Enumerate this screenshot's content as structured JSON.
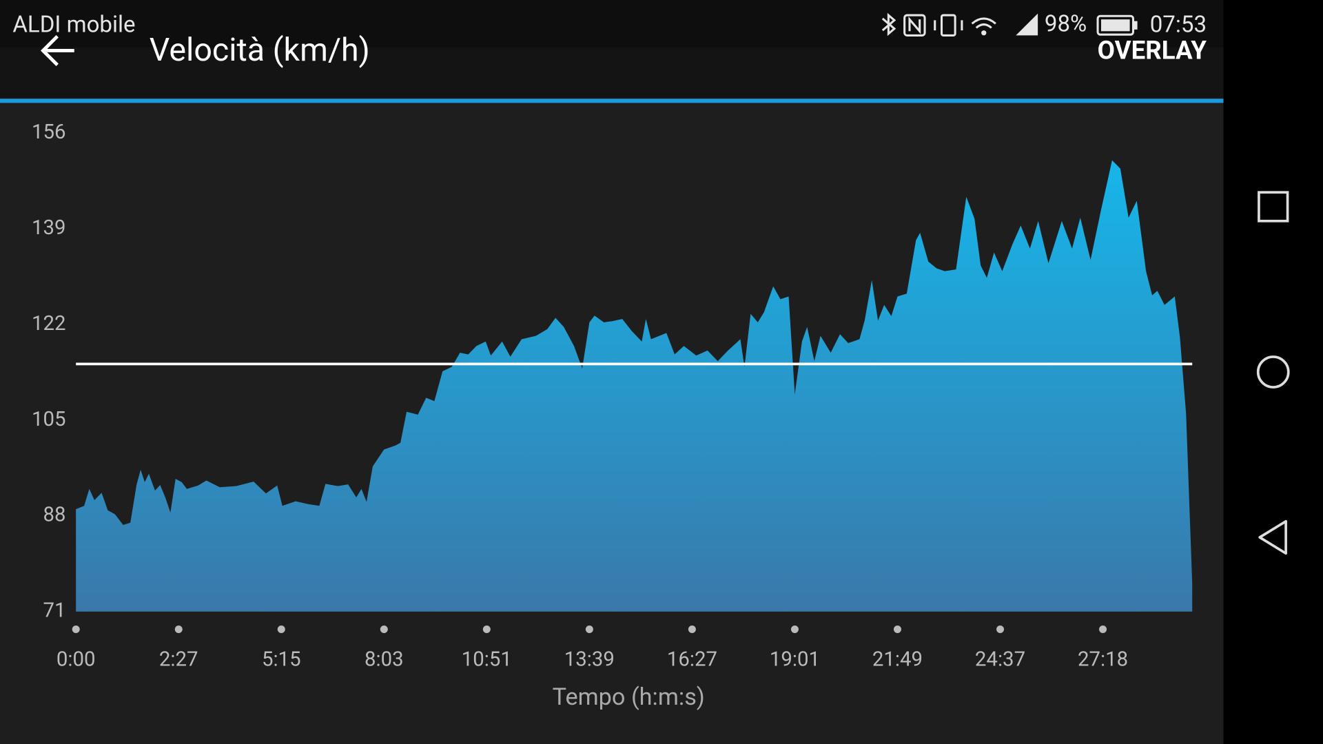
{
  "status_bar": {
    "carrier": "ALDI mobile",
    "battery": "98%",
    "time": "07:53"
  },
  "header": {
    "title": "Velocità (km/h)",
    "action": "OVERLAY"
  },
  "chart_data": {
    "type": "area",
    "x_label": "Tempo (h:m:s)",
    "x": [
      0,
      0.08,
      0.13,
      0.18,
      0.25,
      0.31,
      0.38,
      0.46,
      0.53,
      0.59,
      0.63,
      0.67,
      0.71,
      0.77,
      0.82,
      0.87,
      0.92,
      0.97,
      1.03,
      1.08,
      1.19,
      1.27,
      1.4,
      1.56,
      1.73,
      1.85,
      1.96,
      2.01,
      2.14,
      2.26,
      2.37,
      2.43,
      2.55,
      2.65,
      2.73,
      2.78,
      2.83,
      2.89,
      3.0,
      3.11,
      3.16,
      3.22,
      3.33,
      3.41,
      3.49,
      3.57,
      3.66,
      3.74,
      3.82,
      3.9,
      3.99,
      4.04,
      4.15,
      4.23,
      4.34,
      4.48,
      4.59,
      4.67,
      4.75,
      4.85,
      4.93,
      5.0,
      5.05,
      5.14,
      5.22,
      5.32,
      5.41,
      5.51,
      5.55,
      5.6,
      5.75,
      5.83,
      5.92,
      6.04,
      6.15,
      6.25,
      6.35,
      6.47,
      6.51,
      6.57,
      6.64,
      6.7,
      6.79,
      6.86,
      6.94,
      7.0,
      7.07,
      7.12,
      7.19,
      7.25,
      7.35,
      7.44,
      7.52,
      7.63,
      7.68,
      7.75,
      7.81,
      7.87,
      7.94,
      8.0,
      8.09,
      8.18,
      8.22,
      8.3,
      8.38,
      8.46,
      8.57,
      8.67,
      8.75,
      8.81,
      8.87,
      8.94,
      9.02,
      9.12,
      9.2,
      9.29,
      9.37,
      9.47,
      9.6,
      9.7,
      9.78,
      9.88,
      9.98,
      10.09,
      10.17,
      10.25,
      10.33,
      10.42,
      10.48,
      10.53,
      10.6,
      10.7,
      10.75,
      10.81,
      10.87
    ],
    "values": [
      89.2,
      89.8,
      92.8,
      90.8,
      92.1,
      89.0,
      88.3,
      86.4,
      86.8,
      93.5,
      96.2,
      94.0,
      95.5,
      92.5,
      93.5,
      91.3,
      88.6,
      94.6,
      94.0,
      92.8,
      93.4,
      94.3,
      93.1,
      93.3,
      94.1,
      92.0,
      93.4,
      89.8,
      90.6,
      90.1,
      89.8,
      93.7,
      93.3,
      93.6,
      91.3,
      92.8,
      90.5,
      96.8,
      99.8,
      100.5,
      101.0,
      106.5,
      106.0,
      109.0,
      108.4,
      113.7,
      114.5,
      117.0,
      116.7,
      118.2,
      119.0,
      116.5,
      119.0,
      116.3,
      119.4,
      120.0,
      121.2,
      123.2,
      121.6,
      118.2,
      114.2,
      122.4,
      123.6,
      122.4,
      122.6,
      123.0,
      120.9,
      119.0,
      123.0,
      119.4,
      120.5,
      116.7,
      118.2,
      116.5,
      117.4,
      115.5,
      117.4,
      119.4,
      114.5,
      123.9,
      122.4,
      124.2,
      128.8,
      126.5,
      127.0,
      109.6,
      119.0,
      121.6,
      115.5,
      120.0,
      117.0,
      120.3,
      118.7,
      119.4,
      122.7,
      129.9,
      122.7,
      125.5,
      123.5,
      127.0,
      127.5,
      137.0,
      138.3,
      133.2,
      132.0,
      131.5,
      131.8,
      144.7,
      140.8,
      132.5,
      130.3,
      134.8,
      131.5,
      136.3,
      139.6,
      135.5,
      140.4,
      132.9,
      140.4,
      135.5,
      141.0,
      133.5,
      142.2,
      151.2,
      149.7,
      141.0,
      144.0,
      131.5,
      127.2,
      128.0,
      125.5,
      127.0,
      119.8,
      106.2,
      76.0
    ],
    "xlim": [
      0,
      10.87
    ],
    "xticks": [
      {
        "value": 0,
        "label": "0:00"
      },
      {
        "value": 1,
        "label": "2:27"
      },
      {
        "value": 2,
        "label": "5:15"
      },
      {
        "value": 3,
        "label": "8:03"
      },
      {
        "value": 4,
        "label": "10:51"
      },
      {
        "value": 5,
        "label": "13:39"
      },
      {
        "value": 6,
        "label": "16:27"
      },
      {
        "value": 7,
        "label": "19:01"
      },
      {
        "value": 8,
        "label": "21:49"
      },
      {
        "value": 9,
        "label": "24:37"
      },
      {
        "value": 10,
        "label": "27:18"
      }
    ],
    "ylim": [
      71,
      156
    ],
    "yticks": [
      71,
      88,
      105,
      122,
      139,
      156
    ],
    "reference_line": 115,
    "reference_color": "#ffffff",
    "gradient": [
      "#16b6ea",
      "#3a78aa"
    ]
  }
}
